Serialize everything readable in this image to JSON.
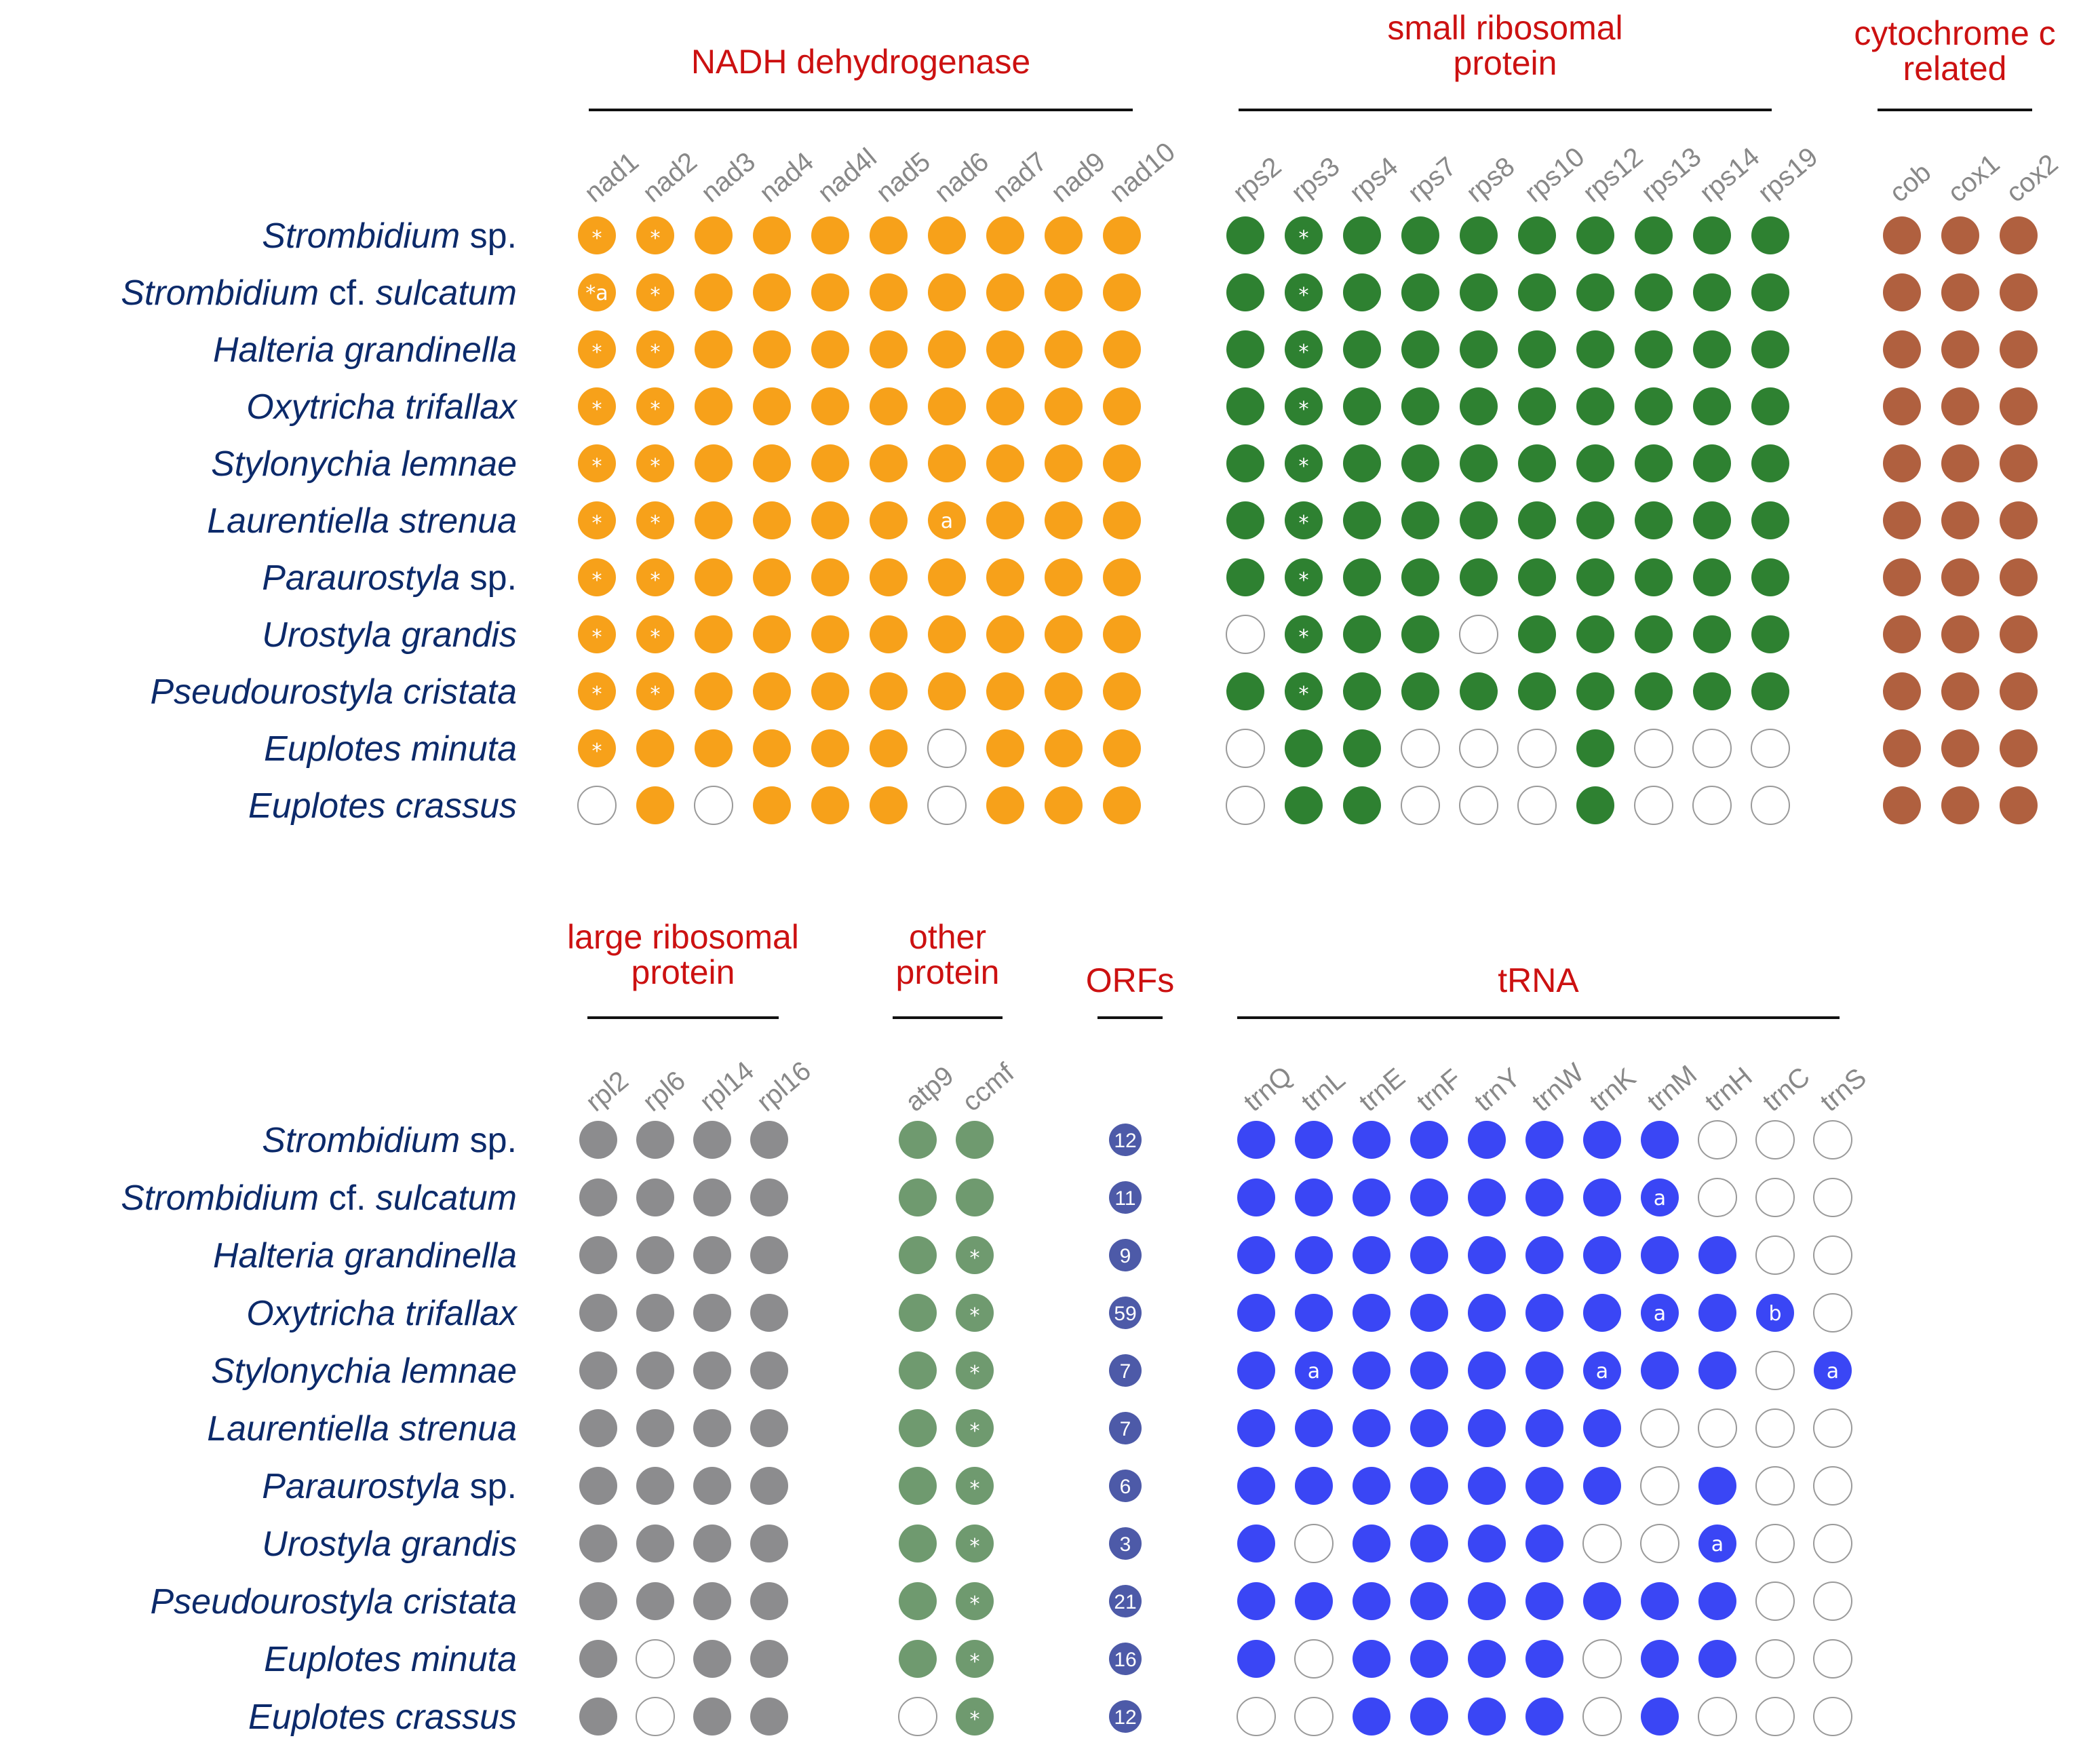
{
  "panels": [
    {
      "id": "top",
      "species": [
        {
          "italic": "Strombidium",
          "plain": " sp."
        },
        {
          "italic": "Strombidium",
          "plain": " cf. ",
          "italic2": "sulcatum"
        },
        {
          "italic": "Halteria grandinella"
        },
        {
          "italic": "Oxytricha trifallax"
        },
        {
          "italic": "Stylonychia lemnae"
        },
        {
          "italic": "Laurentiella strenua"
        },
        {
          "italic": "Paraurostyla",
          "plain": " sp."
        },
        {
          "italic": "Urostyla grandis"
        },
        {
          "italic": "Pseudourostyla cristata"
        },
        {
          "italic": "Euplotes minuta"
        },
        {
          "italic": "Euplotes crassus"
        }
      ],
      "groups": [
        {
          "title_lines": [
            "NADH dehydrogenase"
          ],
          "color": "#f7a11a",
          "genes": [
            "nad1",
            "nad2",
            "nad3",
            "nad4",
            "nad4l",
            "nad5",
            "nad6",
            "nad7",
            "nad9",
            "nad10"
          ],
          "cells": [
            [
              "*",
              "*",
              "1",
              "1",
              "1",
              "1",
              "1",
              "1",
              "1",
              "1"
            ],
            [
              "*a",
              "*",
              "1",
              "1",
              "1",
              "1",
              "1",
              "1",
              "1",
              "1"
            ],
            [
              "*",
              "*",
              "1",
              "1",
              "1",
              "1",
              "1",
              "1",
              "1",
              "1"
            ],
            [
              "*",
              "*",
              "1",
              "1",
              "1",
              "1",
              "1",
              "1",
              "1",
              "1"
            ],
            [
              "*",
              "*",
              "1",
              "1",
              "1",
              "1",
              "1",
              "1",
              "1",
              "1"
            ],
            [
              "*",
              "*",
              "1",
              "1",
              "1",
              "1",
              "a",
              "1",
              "1",
              "1"
            ],
            [
              "*",
              "*",
              "1",
              "1",
              "1",
              "1",
              "1",
              "1",
              "1",
              "1"
            ],
            [
              "*",
              "*",
              "1",
              "1",
              "1",
              "1",
              "1",
              "1",
              "1",
              "1"
            ],
            [
              "*",
              "*",
              "1",
              "1",
              "1",
              "1",
              "1",
              "1",
              "1",
              "1"
            ],
            [
              "*",
              "1",
              "1",
              "1",
              "1",
              "1",
              "0",
              "1",
              "1",
              "1"
            ],
            [
              "0",
              "1",
              "0",
              "1",
              "1",
              "1",
              "0",
              "1",
              "1",
              "1"
            ]
          ]
        },
        {
          "title_lines": [
            "small ribosomal",
            "protein"
          ],
          "color": "#2e8131",
          "genes": [
            "rps2",
            "rps3",
            "rps4",
            "rps7",
            "rps8",
            "rps10",
            "rps12",
            "rps13",
            "rps14",
            "rps19"
          ],
          "cells": [
            [
              "1",
              "*",
              "1",
              "1",
              "1",
              "1",
              "1",
              "1",
              "1",
              "1"
            ],
            [
              "1",
              "*",
              "1",
              "1",
              "1",
              "1",
              "1",
              "1",
              "1",
              "1"
            ],
            [
              "1",
              "*",
              "1",
              "1",
              "1",
              "1",
              "1",
              "1",
              "1",
              "1"
            ],
            [
              "1",
              "*",
              "1",
              "1",
              "1",
              "1",
              "1",
              "1",
              "1",
              "1"
            ],
            [
              "1",
              "*",
              "1",
              "1",
              "1",
              "1",
              "1",
              "1",
              "1",
              "1"
            ],
            [
              "1",
              "*",
              "1",
              "1",
              "1",
              "1",
              "1",
              "1",
              "1",
              "1"
            ],
            [
              "1",
              "*",
              "1",
              "1",
              "1",
              "1",
              "1",
              "1",
              "1",
              "1"
            ],
            [
              "0",
              "*",
              "1",
              "1",
              "0",
              "1",
              "1",
              "1",
              "1",
              "1"
            ],
            [
              "1",
              "*",
              "1",
              "1",
              "1",
              "1",
              "1",
              "1",
              "1",
              "1"
            ],
            [
              "0",
              "1",
              "1",
              "0",
              "0",
              "0",
              "1",
              "0",
              "0",
              "0"
            ],
            [
              "0",
              "1",
              "1",
              "0",
              "0",
              "0",
              "1",
              "0",
              "0",
              "0"
            ]
          ]
        },
        {
          "title_lines": [
            "cytochrome c",
            "related"
          ],
          "color": "#b0603f",
          "genes": [
            "cob",
            "cox1",
            "cox2"
          ],
          "cells": [
            [
              "1",
              "1",
              "1"
            ],
            [
              "1",
              "1",
              "1"
            ],
            [
              "1",
              "1",
              "1"
            ],
            [
              "1",
              "1",
              "1"
            ],
            [
              "1",
              "1",
              "1"
            ],
            [
              "1",
              "1",
              "1"
            ],
            [
              "1",
              "1",
              "1"
            ],
            [
              "1",
              "1",
              "1"
            ],
            [
              "1",
              "1",
              "1"
            ],
            [
              "1",
              "1",
              "1"
            ],
            [
              "1",
              "1",
              "1"
            ]
          ]
        }
      ]
    },
    {
      "id": "bottom",
      "species": [
        {
          "italic": "Strombidium",
          "plain": " sp."
        },
        {
          "italic": "Strombidium",
          "plain": " cf. ",
          "italic2": "sulcatum"
        },
        {
          "italic": "Halteria grandinella"
        },
        {
          "italic": "Oxytricha trifallax"
        },
        {
          "italic": "Stylonychia lemnae"
        },
        {
          "italic": "Laurentiella strenua"
        },
        {
          "italic": "Paraurostyla",
          "plain": " sp."
        },
        {
          "italic": "Urostyla grandis"
        },
        {
          "italic": "Pseudourostyla cristata"
        },
        {
          "italic": "Euplotes minuta"
        },
        {
          "italic": "Euplotes crassus"
        }
      ],
      "groups": [
        {
          "title_lines": [
            "large ribosomal",
            "protein"
          ],
          "color": "#8c8c8e",
          "genes": [
            "rpl2",
            "rpl6",
            "rpl14",
            "rpl16"
          ],
          "cells": [
            [
              "1",
              "1",
              "1",
              "1"
            ],
            [
              "1",
              "1",
              "1",
              "1"
            ],
            [
              "1",
              "1",
              "1",
              "1"
            ],
            [
              "1",
              "1",
              "1",
              "1"
            ],
            [
              "1",
              "1",
              "1",
              "1"
            ],
            [
              "1",
              "1",
              "1",
              "1"
            ],
            [
              "1",
              "1",
              "1",
              "1"
            ],
            [
              "1",
              "1",
              "1",
              "1"
            ],
            [
              "1",
              "1",
              "1",
              "1"
            ],
            [
              "1",
              "0",
              "1",
              "1"
            ],
            [
              "1",
              "0",
              "1",
              "1"
            ]
          ]
        },
        {
          "title_lines": [
            "other",
            "protein"
          ],
          "color": "#6f9a6f",
          "genes": [
            "atp9",
            "ccmf"
          ],
          "cells": [
            [
              "1",
              "1"
            ],
            [
              "1",
              "1"
            ],
            [
              "1",
              "*"
            ],
            [
              "1",
              "*"
            ],
            [
              "1",
              "*"
            ],
            [
              "1",
              "*"
            ],
            [
              "1",
              "*"
            ],
            [
              "1",
              "*"
            ],
            [
              "1",
              "*"
            ],
            [
              "1",
              "*"
            ],
            [
              "0",
              "*"
            ]
          ]
        },
        {
          "title_lines": [
            "ORFs"
          ],
          "color": "#4d5aa8",
          "genes": [],
          "cells": [
            [
              "12"
            ],
            [
              "11"
            ],
            [
              "9"
            ],
            [
              "59"
            ],
            [
              "7"
            ],
            [
              "7"
            ],
            [
              "6"
            ],
            [
              "3"
            ],
            [
              "21"
            ],
            [
              "16"
            ],
            [
              "12"
            ]
          ]
        },
        {
          "title_lines": [
            "tRNA"
          ],
          "color": "#3a46f5",
          "genes": [
            "trnQ",
            "trnL",
            "trnE",
            "trnF",
            "trnY",
            "trnW",
            "trnK",
            "trnM",
            "trnH",
            "trnC",
            "trnS"
          ],
          "cells": [
            [
              "1",
              "1",
              "1",
              "1",
              "1",
              "1",
              "1",
              "1",
              "0",
              "0",
              "0"
            ],
            [
              "1",
              "1",
              "1",
              "1",
              "1",
              "1",
              "1",
              "a",
              "0",
              "0",
              "0"
            ],
            [
              "1",
              "1",
              "1",
              "1",
              "1",
              "1",
              "1",
              "1",
              "1",
              "0",
              "0"
            ],
            [
              "1",
              "1",
              "1",
              "1",
              "1",
              "1",
              "1",
              "a",
              "1",
              "b",
              "0"
            ],
            [
              "1",
              "a",
              "1",
              "1",
              "1",
              "1",
              "a",
              "1",
              "1",
              "0",
              "a"
            ],
            [
              "1",
              "1",
              "1",
              "1",
              "1",
              "1",
              "1",
              "0",
              "0",
              "0",
              "0"
            ],
            [
              "1",
              "1",
              "1",
              "1",
              "1",
              "1",
              "1",
              "0",
              "1",
              "0",
              "0"
            ],
            [
              "1",
              "0",
              "1",
              "1",
              "1",
              "1",
              "0",
              "0",
              "a",
              "0",
              "0"
            ],
            [
              "1",
              "1",
              "1",
              "1",
              "1",
              "1",
              "1",
              "1",
              "1",
              "0",
              "0"
            ],
            [
              "1",
              "0",
              "1",
              "1",
              "1",
              "1",
              "0",
              "1",
              "1",
              "0",
              "0"
            ],
            [
              "0",
              "0",
              "1",
              "1",
              "1",
              "1",
              "0",
              "1",
              "0",
              "0",
              "0"
            ]
          ]
        }
      ]
    }
  ]
}
